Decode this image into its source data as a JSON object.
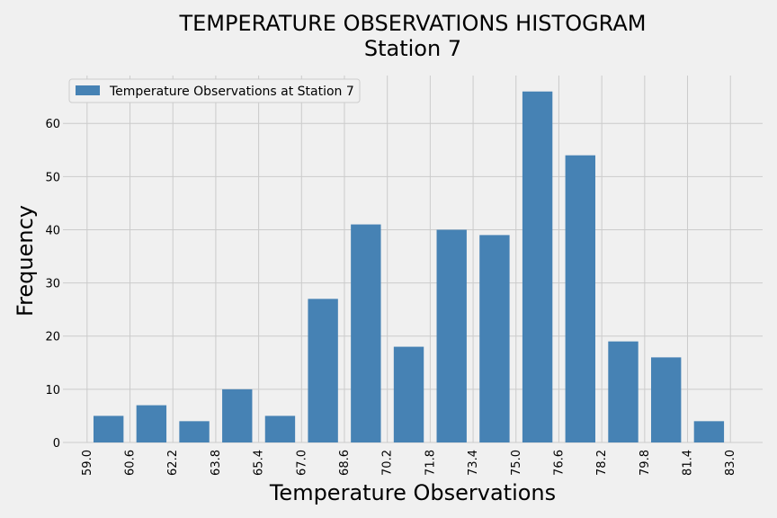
{
  "chart_data": {
    "type": "bar",
    "title": "TEMPERATURE OBSERVATIONS HISTOGRAM",
    "subtitle": "Station 7",
    "xlabel": "Temperature Observations",
    "ylabel": "Frequency",
    "bin_edges": [
      59.0,
      60.6,
      62.2,
      63.8,
      65.4,
      67.0,
      68.6,
      70.2,
      71.8,
      73.4,
      75.0,
      76.6,
      78.2,
      79.8,
      81.4,
      83.0
    ],
    "x_tick_labels": [
      "59.0",
      "60.6",
      "62.2",
      "63.8",
      "65.4",
      "67.0",
      "68.6",
      "70.2",
      "71.8",
      "73.4",
      "75.0",
      "76.6",
      "78.2",
      "79.8",
      "81.4",
      "83.0"
    ],
    "y_ticks": [
      0,
      10,
      20,
      30,
      40,
      50,
      60
    ],
    "ylim": [
      0,
      69
    ],
    "xlim": [
      58.1,
      84.2
    ],
    "series": [
      {
        "name": "Temperature Observations at Station 7",
        "values": [
          5,
          7,
          4,
          10,
          5,
          27,
          41,
          18,
          40,
          39,
          66,
          54,
          19,
          16,
          4
        ]
      }
    ],
    "legend_position": "top-left",
    "grid": true,
    "colors": {
      "bar": "#4682b4",
      "background": "#f0f0f0",
      "grid": "#cbcbcb"
    }
  }
}
